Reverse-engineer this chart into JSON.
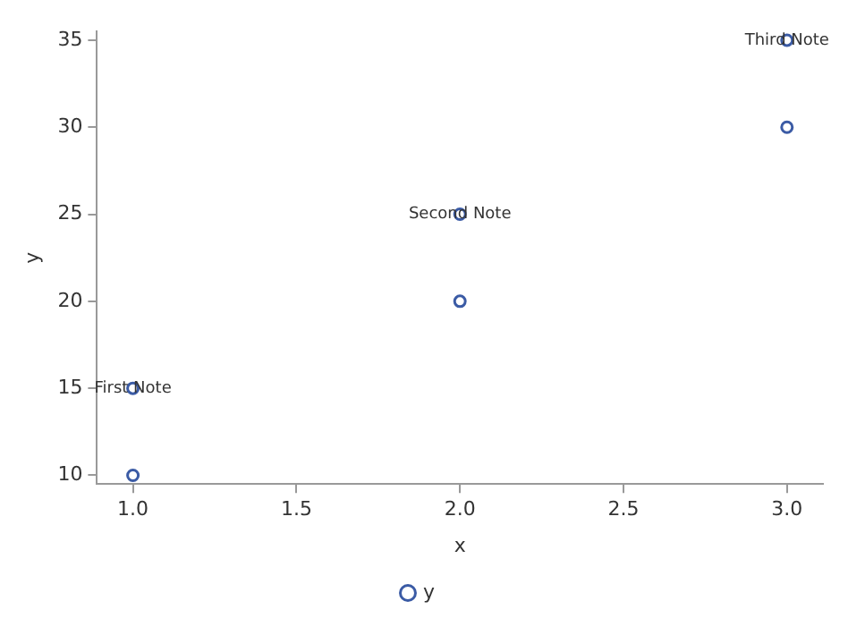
{
  "chart_data": {
    "type": "scatter",
    "xlabel": "x",
    "ylabel": "y",
    "x": [
      1,
      1,
      2,
      2,
      3,
      3
    ],
    "series": [
      {
        "name": "y",
        "color": "#3b5ba5",
        "values": [
          10,
          15,
          20,
          25,
          30,
          35
        ]
      }
    ],
    "xlim": [
      0.89,
      3.11
    ],
    "ylim": [
      9.5,
      35.5
    ],
    "xticks": [
      {
        "value": 1,
        "label": "1.0"
      },
      1.5,
      {
        "value": 2,
        "label": "2.0"
      },
      2.5,
      {
        "value": 3,
        "label": "3.0"
      }
    ],
    "yticks": [
      10,
      15,
      20,
      25,
      30,
      35
    ],
    "annotations": [
      {
        "text": "First Note",
        "x": 1,
        "y": 15
      },
      {
        "text": "Second Note",
        "x": 2,
        "y": 25
      },
      {
        "text": "Third Note",
        "x": 3,
        "y": 35
      }
    ],
    "marker": "circle",
    "grid": false,
    "legend": "bottom"
  }
}
